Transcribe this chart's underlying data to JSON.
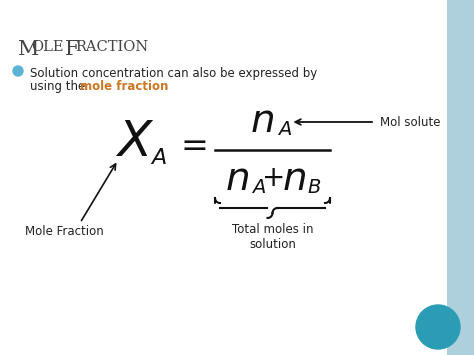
{
  "title_M": "M",
  "title_ole": "OLE ",
  "title_F": "F",
  "title_raction": "RACTION",
  "bullet_line1": "Solution concentration can also be expressed by",
  "bullet_line2_black": "using the ",
  "bullet_line2_orange": "mole fraction",
  "orange_color": "#cc7722",
  "title_color": "#444444",
  "text_color": "#222222",
  "bg_color": "#f0f0f0",
  "sidebar_color": "#aecfdc",
  "teal_color": "#2a9db5",
  "bullet_color": "#5ab4d6",
  "formula_color": "#111111",
  "white_bg": "#ffffff"
}
